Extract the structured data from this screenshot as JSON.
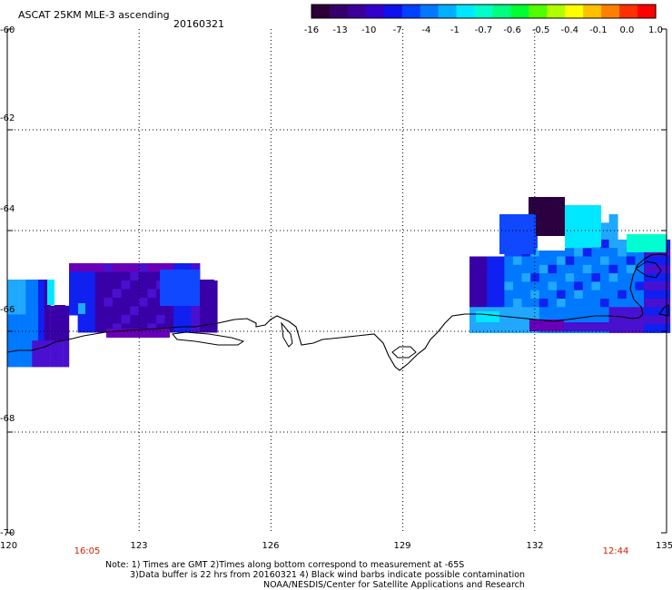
{
  "header": {
    "title": "ASCAT 25KM MLE-3 ascending",
    "date": "20160321"
  },
  "colorbar": {
    "colors": [
      "#2a0036",
      "#36006a",
      "#3c0098",
      "#3300cc",
      "#1010ee",
      "#0040ff",
      "#0078ff",
      "#00b0ff",
      "#00e8ff",
      "#00ffc8",
      "#00ff80",
      "#00ff30",
      "#50ff00",
      "#b0ff00",
      "#ffff00",
      "#ffc000",
      "#ff8000",
      "#ff3000",
      "#ff0000"
    ],
    "ticks": [
      "-16",
      "-13",
      "-10",
      "-7",
      "-4",
      "-1",
      "-0.7",
      "-0.6",
      "-0.5",
      "-0.4",
      "-0.1",
      "0.0",
      "1.0"
    ]
  },
  "axes": {
    "x_ticks": [
      "120",
      "123",
      "126",
      "129",
      "132",
      "135"
    ],
    "y_ticks": [
      "-60",
      "-62",
      "-64",
      "-66",
      "-68",
      "-70"
    ],
    "time_labels": [
      "16:05",
      "12:44"
    ],
    "time_color": "#cc2200"
  },
  "notes": {
    "line1": "Note: 1) Times are GMT 2)Times along bottom correspond to measurement at -65S",
    "line2": "3)Data buffer is 22 hrs from 20160321 4) Black wind barbs indicate possible contamination",
    "line3": "NOAA/NESDIS/Center for Satellite Applications and Research"
  }
}
